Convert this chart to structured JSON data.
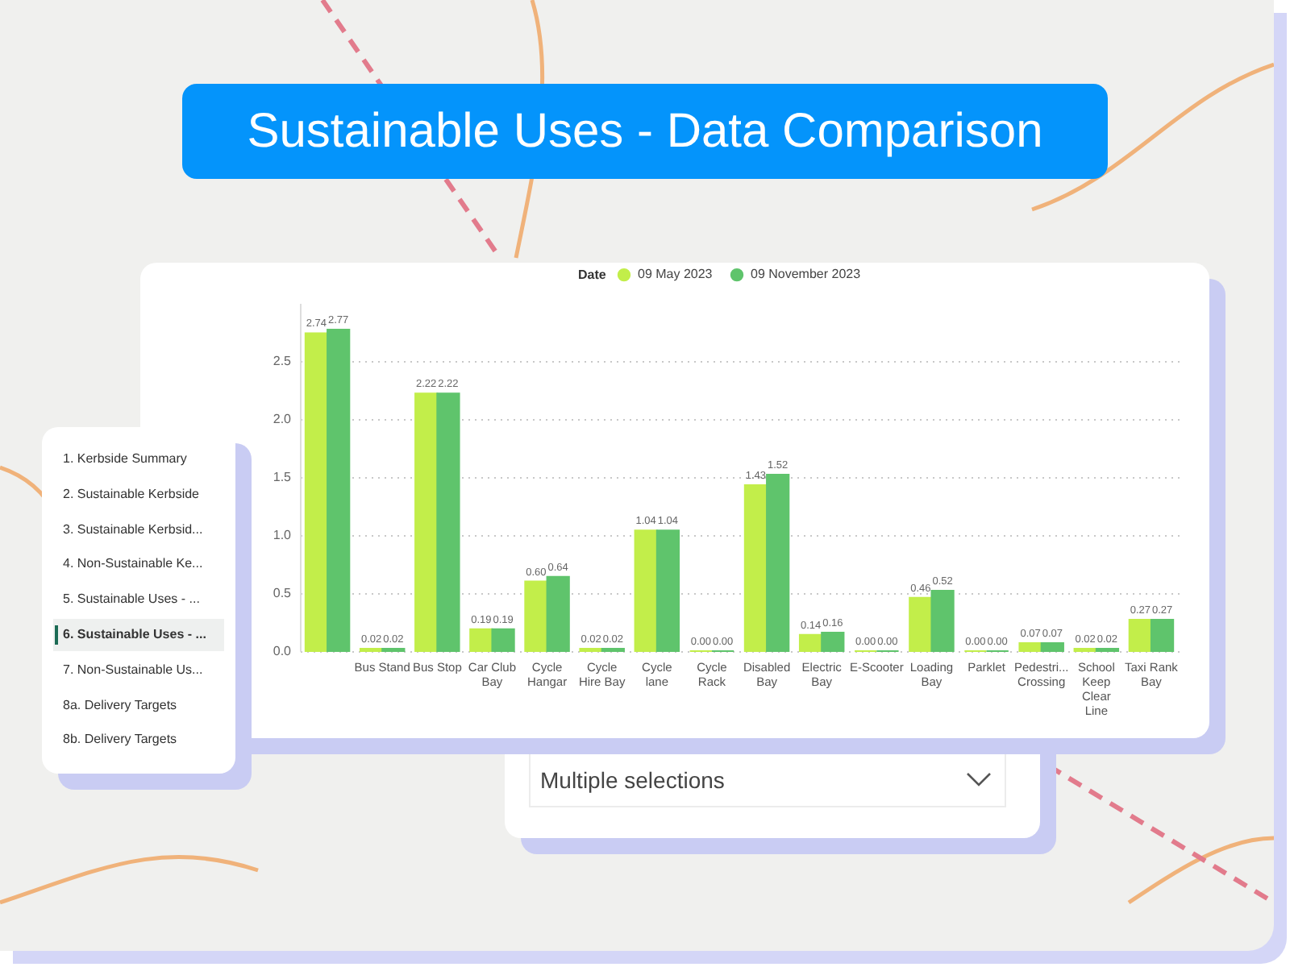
{
  "chart_data": {
    "type": "bar",
    "title": "Sustainable Uses - Data Comparison",
    "categories": [
      null,
      "Bus Stand",
      "Bus Stop",
      "Car Club Bay",
      "Cycle Hangar",
      "Cycle Hire Bay",
      "Cycle lane",
      "Cycle Rack",
      "Disabled Bay",
      "Electric Bay",
      "E-Scooter",
      "Loading Bay",
      "Parklet",
      "Pedestri... Crossing",
      "School Keep Clear Line",
      "Taxi Rank Bay"
    ],
    "series": [
      {
        "name": "09 May 2023",
        "color": "#c2ee4a",
        "values": [
          2.74,
          0.02,
          2.22,
          0.19,
          0.6,
          0.02,
          1.04,
          0.0,
          1.43,
          0.14,
          0.0,
          0.46,
          0.0,
          0.07,
          0.02,
          0.27
        ],
        "value_labels": [
          "2.74",
          "0.02",
          "2.22",
          "0.19",
          "0.60",
          "0.02",
          "1.04",
          "0.00",
          "1.43",
          "0.14",
          "0.00",
          "0.46",
          "0.00",
          "0.07",
          "0.02",
          "0.27"
        ]
      },
      {
        "name": "09 November 2023",
        "color": "#5fc46c",
        "values": [
          2.77,
          0.02,
          2.22,
          0.19,
          0.64,
          0.02,
          1.04,
          0.0,
          1.52,
          0.16,
          0.0,
          0.52,
          0.0,
          0.07,
          0.02,
          0.27
        ],
        "value_labels": [
          "2.77",
          "0.02",
          "2.22",
          "0.19",
          "0.64",
          "0.02",
          "1.04",
          "0.00",
          "1.52",
          "0.16",
          "0.00",
          "0.52",
          "0.00",
          "0.07",
          "0.02",
          "0.27"
        ]
      }
    ],
    "legend_title": "Date",
    "legend": "top",
    "ylim": [
      0,
      3
    ],
    "yticks": [
      {
        "value": 0,
        "label": "0.0"
      },
      0.5,
      {
        "value": 1,
        "label": "1.0"
      },
      1.5,
      {
        "value": 2,
        "label": "2.0"
      },
      2.5
    ],
    "grid": "y",
    "annotations": [
      "1. Kerbside Summary",
      "2. Sustainable Kerbside",
      "3. Sustainable Kerbsid...",
      "4. Non-Sustainable Ke...",
      "5. Sustainable Uses - ...",
      "6. Sustainable Uses - ...",
      "7. Non-Sustainable Us...",
      "8a. Delivery Targets",
      "8b. Delivery Targets",
      "Multiple selections"
    ]
  }
}
